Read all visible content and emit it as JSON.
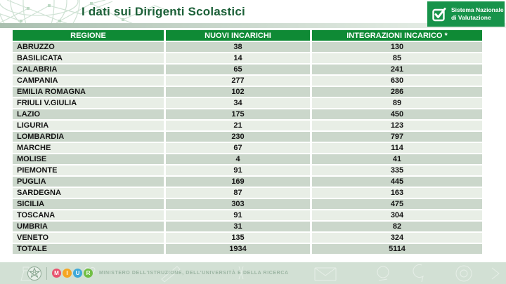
{
  "header": {
    "title": "I dati sui Dirigenti Scolastici",
    "snv_logo": {
      "line1": "Sistema Nazionale",
      "line2": "di Valutazione"
    }
  },
  "table": {
    "columns": [
      "REGIONE",
      "NUOVI INCARICHI",
      "INTEGRAZIONI INCARICO *"
    ],
    "rows": [
      [
        "ABRUZZO",
        "38",
        "130"
      ],
      [
        "BASILICATA",
        "14",
        "85"
      ],
      [
        "CALABRIA",
        "65",
        "241"
      ],
      [
        "CAMPANIA",
        "277",
        "630"
      ],
      [
        "EMILIA ROMAGNA",
        "102",
        "286"
      ],
      [
        "FRIULI V.GIULIA",
        "34",
        "89"
      ],
      [
        "LAZIO",
        "175",
        "450"
      ],
      [
        "LIGURIA",
        "21",
        "123"
      ],
      [
        "LOMBARDIA",
        "230",
        "797"
      ],
      [
        "MARCHE",
        "67",
        "114"
      ],
      [
        "MOLISE",
        "4",
        "41"
      ],
      [
        "PIEMONTE",
        "91",
        "335"
      ],
      [
        "PUGLIA",
        "169",
        "445"
      ],
      [
        "SARDEGNA",
        "87",
        "163"
      ],
      [
        "SICILIA",
        "303",
        "475"
      ],
      [
        "TOSCANA",
        "91",
        "304"
      ],
      [
        "UMBRIA",
        "31",
        "82"
      ],
      [
        "VENETO",
        "135",
        "324"
      ],
      [
        "TOTALE",
        "1934",
        "5114"
      ]
    ]
  },
  "footer": {
    "ministry_text": "MINISTERO DELL'ISTRUZIONE, DELL'UNIVERSITÀ E DELLA RICERCA",
    "miur_letters": [
      "M",
      "I",
      "U",
      "R"
    ],
    "miur_colors": [
      "#e8536f",
      "#f5a623",
      "#3fa9d9",
      "#71bf44"
    ]
  },
  "colors": {
    "table_header_green": "#0f8a35",
    "snv_green": "#17934a",
    "title_green": "#1c6038",
    "row_dark": "#cbd7cb",
    "row_light": "#e8eee6",
    "footer_band": "#d2e0d4"
  }
}
